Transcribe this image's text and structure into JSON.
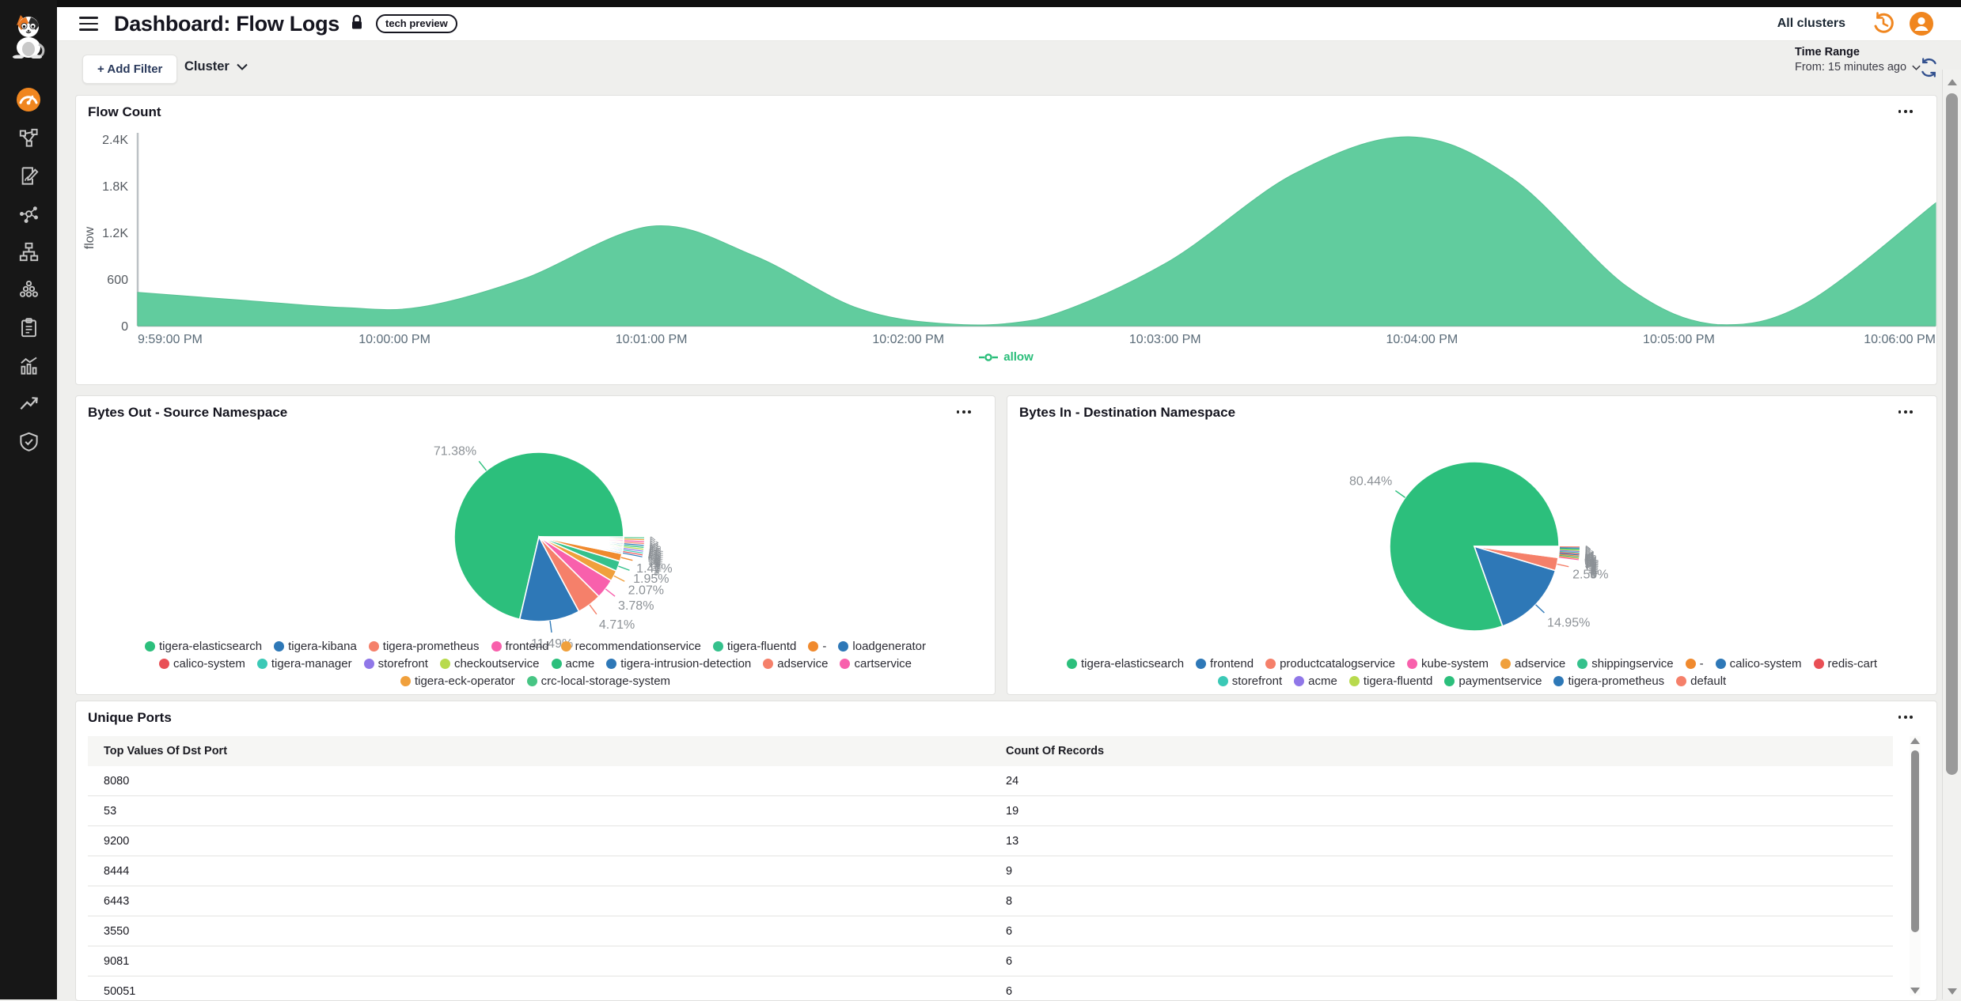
{
  "header": {
    "title": "Dashboard: Flow Logs",
    "badge": "tech preview",
    "all_clusters": "All clusters"
  },
  "sidebar": {
    "icons": [
      "calico-cat-logo",
      "gauge-dashboard",
      "service-graph",
      "document-edit",
      "molecule-graph",
      "network-hierarchy",
      "cluster-dots",
      "clipboard-list",
      "bar-chart",
      "trend-arrow",
      "shield-check"
    ],
    "active_icon": "gauge-dashboard",
    "active_color": "#F0861F"
  },
  "filters": {
    "add_filter": "+ Add Filter",
    "cluster": "Cluster"
  },
  "time_range": {
    "label": "Time Range",
    "value": "From: 15 minutes ago"
  },
  "colors": {
    "brand_orange": "#F0861F",
    "area_green": "#61CC9E",
    "legend_green": "#29BD79",
    "refresh_navy": "#32508E"
  },
  "chart_data": [
    {
      "type": "area",
      "title": "Flow Count",
      "ylabel": "flow",
      "legend": "allow",
      "ylim": [
        0,
        2400
      ],
      "y_ticks": [
        "0",
        "600",
        "1.2K",
        "1.8K",
        "2.4K"
      ],
      "x_ticks": [
        "9:59:00 PM",
        "10:00:00 PM",
        "10:01:00 PM",
        "10:02:00 PM",
        "10:03:00 PM",
        "10:04:00 PM",
        "10:05:00 PM",
        "10:06:00 PM"
      ],
      "series": [
        {
          "name": "allow",
          "color": "#61CC9E",
          "points_t_minutes_vs_flow": [
            [
              0,
              430
            ],
            [
              0.4,
              330
            ],
            [
              0.8,
              235
            ],
            [
              1.1,
              240
            ],
            [
              1.5,
              600
            ],
            [
              2.0,
              1280
            ],
            [
              2.4,
              900
            ],
            [
              2.8,
              230
            ],
            [
              3.15,
              25
            ],
            [
              3.5,
              80
            ],
            [
              4.0,
              800
            ],
            [
              4.5,
              1950
            ],
            [
              4.95,
              2430
            ],
            [
              5.35,
              1900
            ],
            [
              5.8,
              500
            ],
            [
              6.15,
              15
            ],
            [
              6.5,
              300
            ],
            [
              7,
              1580
            ]
          ]
        }
      ]
    },
    {
      "type": "pie",
      "title": "Bytes Out - Source Namespace",
      "slices": [
        {
          "label": "tigera-elasticsearch",
          "pct": 71.38,
          "pct_label": "71.38%",
          "color": "#2CBF7C"
        },
        {
          "label": "tigera-kibana",
          "pct": 11.49,
          "pct_label": "11.49%",
          "color": "#2E78B7"
        },
        {
          "label": "tigera-prometheus",
          "pct": 4.71,
          "pct_label": "4.71%",
          "color": "#F5806A"
        },
        {
          "label": "frontend",
          "pct": 3.78,
          "pct_label": "3.78%",
          "color": "#F860AC"
        },
        {
          "label": "recommendationservice",
          "pct": 2.07,
          "pct_label": "2.07%",
          "color": "#F0A03C"
        },
        {
          "label": "tigera-fluentd",
          "pct": 1.95,
          "pct_label": "1.95%",
          "color": "#35C18C"
        },
        {
          "label": "-",
          "pct": 1.47,
          "pct_label": "1.47%",
          "color": "#F08A2E"
        },
        {
          "label": "loadgenerator",
          "pct": 0.29,
          "pct_label": "<1%",
          "color": "#2E78B7"
        },
        {
          "label": "calico-system",
          "pct": 0.29,
          "pct_label": "<1%",
          "color": "#E94F55"
        },
        {
          "label": "tigera-manager",
          "pct": 0.29,
          "pct_label": "<1%",
          "color": "#3BC9B6"
        },
        {
          "label": "storefront",
          "pct": 0.29,
          "pct_label": "<1%",
          "color": "#9077E8"
        },
        {
          "label": "checkoutservice",
          "pct": 0.29,
          "pct_label": "<1%",
          "color": "#B8DA4D"
        },
        {
          "label": "acme",
          "pct": 0.29,
          "pct_label": "<1%",
          "color": "#2CBF7C"
        },
        {
          "label": "tigera-intrusion-detection",
          "pct": 0.29,
          "pct_label": "<1%",
          "color": "#2E78B7"
        },
        {
          "label": "adservice",
          "pct": 0.29,
          "pct_label": "<1%",
          "color": "#F5806A"
        },
        {
          "label": "cartservice",
          "pct": 0.29,
          "pct_label": "<1%",
          "color": "#F860AC"
        },
        {
          "label": "tigera-eck-operator",
          "pct": 0.29,
          "pct_label": "<1%",
          "color": "#F0A03C"
        },
        {
          "label": "crc-local-storage-system",
          "pct": 0.28,
          "pct_label": "<1%",
          "color": "#47C584"
        }
      ]
    },
    {
      "type": "pie",
      "title": "Bytes In - Destination Namespace",
      "slices": [
        {
          "label": "tigera-elasticsearch",
          "pct": 80.44,
          "pct_label": "80.44%",
          "color": "#2CBF7C"
        },
        {
          "label": "frontend",
          "pct": 14.95,
          "pct_label": "14.95%",
          "color": "#2E78B7"
        },
        {
          "label": "productcatalogservice",
          "pct": 2.5,
          "pct_label": "2.50%",
          "color": "#F5806A"
        },
        {
          "label": "kube-system",
          "pct": 0.18,
          "pct_label": "<1%",
          "color": "#F860AC"
        },
        {
          "label": "adservice",
          "pct": 0.18,
          "pct_label": "<1%",
          "color": "#F0A03C"
        },
        {
          "label": "shippingservice",
          "pct": 0.18,
          "pct_label": "<1%",
          "color": "#35C18C"
        },
        {
          "label": "-",
          "pct": 0.18,
          "pct_label": "<1%",
          "color": "#F08A2E"
        },
        {
          "label": "calico-system",
          "pct": 0.18,
          "pct_label": "<1%",
          "color": "#2E78B7"
        },
        {
          "label": "redis-cart",
          "pct": 0.18,
          "pct_label": "<1%",
          "color": "#E94F55"
        },
        {
          "label": "storefront",
          "pct": 0.18,
          "pct_label": "<1%",
          "color": "#3BC9B6"
        },
        {
          "label": "acme",
          "pct": 0.18,
          "pct_label": "<1%",
          "color": "#9077E8"
        },
        {
          "label": "tigera-fluentd",
          "pct": 0.17,
          "pct_label": "<1%",
          "color": "#B8DA4D"
        },
        {
          "label": "paymentservice",
          "pct": 0.17,
          "pct_label": "<1%",
          "color": "#2CBF7C"
        },
        {
          "label": "tigera-prometheus",
          "pct": 0.17,
          "pct_label": "<1%",
          "color": "#2E78B7"
        },
        {
          "label": "default",
          "pct": 0.17,
          "pct_label": "<1%",
          "color": "#F5806A"
        }
      ]
    },
    {
      "type": "table",
      "title": "Unique Ports",
      "columns": [
        "Top Values Of Dst Port",
        "Count Of Records"
      ],
      "rows": [
        [
          "8080",
          "24"
        ],
        [
          "53",
          "19"
        ],
        [
          "9200",
          "13"
        ],
        [
          "8444",
          "9"
        ],
        [
          "6443",
          "8"
        ],
        [
          "3550",
          "6"
        ],
        [
          "9081",
          "6"
        ],
        [
          "50051",
          "6"
        ]
      ]
    }
  ]
}
